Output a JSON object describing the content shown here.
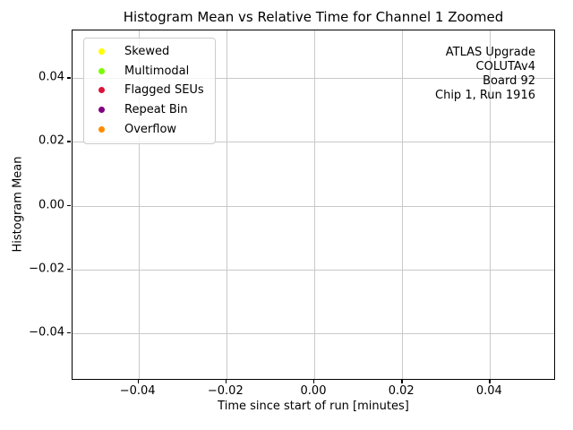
{
  "chart_data": {
    "type": "scatter",
    "title": "Histogram Mean vs Relative Time for Channel 1 Zoomed",
    "xlabel": "Time since start of run [minutes]",
    "ylabel": "Histogram Mean",
    "xlim": [
      -0.055,
      0.055
    ],
    "ylim": [
      -0.055,
      0.055
    ],
    "xticks": {
      "values": [
        -0.04,
        -0.02,
        0.0,
        0.02,
        0.04
      ],
      "labels": [
        "−0.04",
        "−0.02",
        "0.00",
        "0.02",
        "0.04"
      ]
    },
    "yticks": {
      "values": [
        -0.04,
        -0.02,
        0.0,
        0.02,
        0.04
      ],
      "labels": [
        "−0.04",
        "−0.02",
        "0.00",
        "0.02",
        "0.04"
      ]
    },
    "grid": true,
    "grid_color": "#c9c9c9",
    "legend_position": "upper left",
    "series": [
      {
        "name": "Skewed",
        "color": "#ffff00",
        "marker": "circle",
        "points": []
      },
      {
        "name": "Multimodal",
        "color": "#7cfc00",
        "marker": "circle",
        "points": []
      },
      {
        "name": "Flagged SEUs",
        "color": "#dc143c",
        "marker": "circle",
        "points": []
      },
      {
        "name": "Repeat Bin",
        "color": "#800080",
        "marker": "circle",
        "points": []
      },
      {
        "name": "Overflow",
        "color": "#ff8c00",
        "marker": "circle",
        "points": []
      }
    ],
    "annotation": {
      "align": "right",
      "lines": [
        "ATLAS Upgrade",
        "COLUTAv4",
        "Board 92",
        "Chip 1, Run 1916"
      ]
    }
  }
}
